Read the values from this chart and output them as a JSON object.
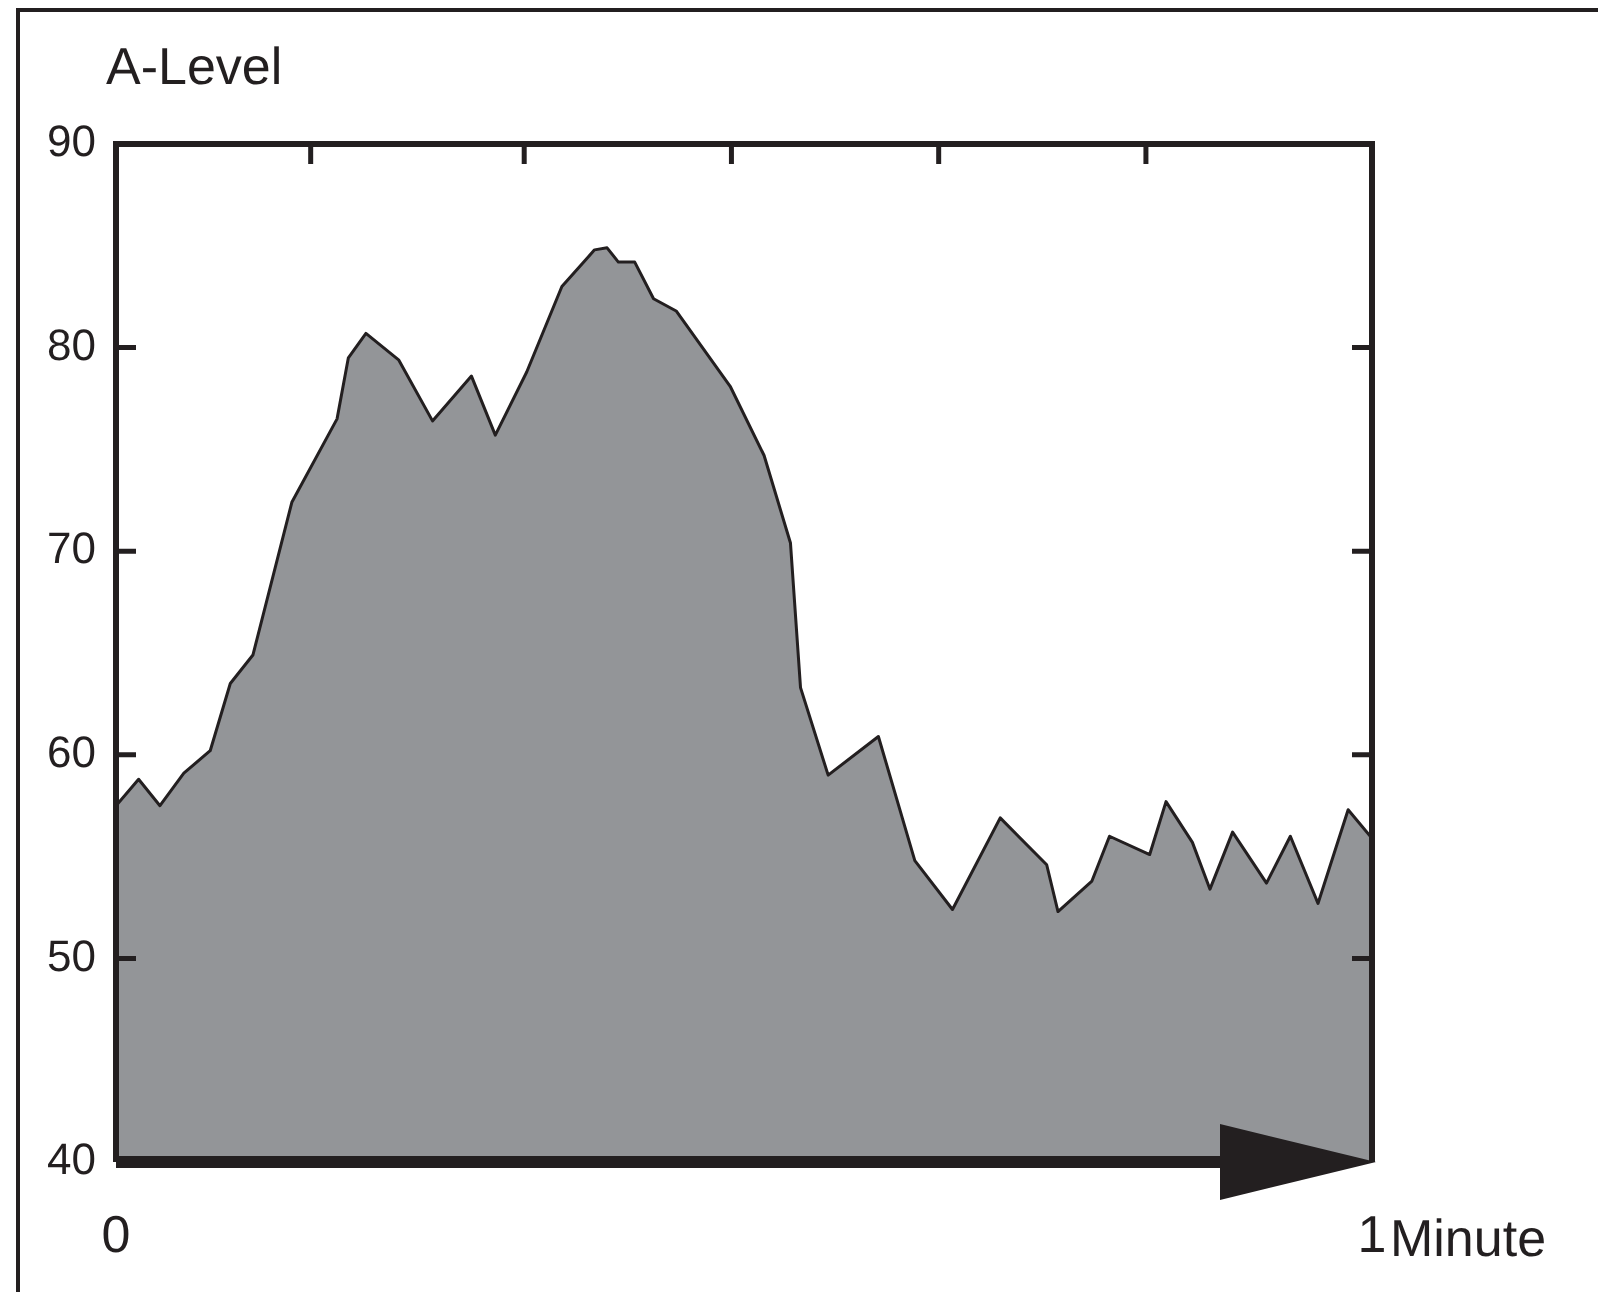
{
  "chart_data": {
    "type": "area",
    "title": "A-Level",
    "xlabel": "Minute",
    "x": [
      0,
      0.018,
      0.035,
      0.054,
      0.075,
      0.091,
      0.109,
      0.14,
      0.176,
      0.185,
      0.199,
      0.225,
      0.252,
      0.283,
      0.302,
      0.327,
      0.355,
      0.381,
      0.391,
      0.4,
      0.413,
      0.428,
      0.446,
      0.489,
      0.516,
      0.537,
      0.545,
      0.567,
      0.607,
      0.636,
      0.666,
      0.704,
      0.741,
      0.75,
      0.777,
      0.791,
      0.823,
      0.836,
      0.857,
      0.871,
      0.889,
      0.916,
      0.935,
      0.957,
      0.981,
      1
    ],
    "series": [
      {
        "color": "#939598",
        "values": [
          57.5,
          58.8,
          57.5,
          59.1,
          60.2,
          63.5,
          64.9,
          72.4,
          76.5,
          79.5,
          80.7,
          79.4,
          76.4,
          78.6,
          75.7,
          78.8,
          83.0,
          84.8,
          84.9,
          84.2,
          84.2,
          82.4,
          81.8,
          78.1,
          74.7,
          70.4,
          63.3,
          59.0,
          60.9,
          54.8,
          52.4,
          56.9,
          54.6,
          52.3,
          53.8,
          56.0,
          55.1,
          57.7,
          55.7,
          53.4,
          56.2,
          53.7,
          56.0,
          52.7,
          57.3,
          55.9
        ]
      }
    ],
    "xlim": [
      0,
      1
    ],
    "xticks": [
      0,
      {
        "value": 0.155,
        "label": null
      },
      {
        "value": 0.325,
        "label": null
      },
      {
        "value": 0.49,
        "label": null
      },
      {
        "value": 0.655,
        "label": null
      },
      {
        "value": 0.82,
        "label": null
      },
      1
    ],
    "ylim": [
      40,
      90
    ],
    "yticks": [
      40,
      50,
      60,
      70,
      80,
      90
    ],
    "grid": false
  }
}
